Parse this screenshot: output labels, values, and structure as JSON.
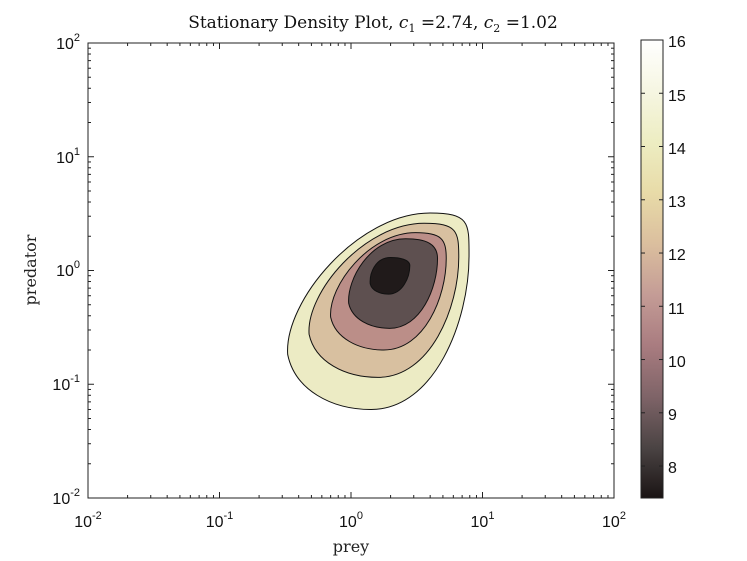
{
  "chart_data": {
    "type": "contour",
    "title_prefix": "Stationary Density Plot, ",
    "c1_sym": "c",
    "c1_sub": "1",
    "c1_eq": " =2.74, ",
    "c2_sym": "c",
    "c2_sub": "2",
    "c2_eq": " =1.02",
    "c1": 2.74,
    "c2": 1.02,
    "xlabel": "prey",
    "ylabel": "predator",
    "xscale": "log",
    "yscale": "log",
    "xlim": [
      0.01,
      100
    ],
    "ylim": [
      0.01,
      100
    ],
    "x_ticks": [
      {
        "base": "10",
        "exp": "-2"
      },
      {
        "base": "10",
        "exp": "-1"
      },
      {
        "base": "10",
        "exp": "0"
      },
      {
        "base": "10",
        "exp": "1"
      },
      {
        "base": "10",
        "exp": "2"
      }
    ],
    "y_ticks": [
      {
        "base": "10",
        "exp": "-2"
      },
      {
        "base": "10",
        "exp": "-1"
      },
      {
        "base": "10",
        "exp": "0"
      },
      {
        "base": "10",
        "exp": "1"
      },
      {
        "base": "10",
        "exp": "2"
      }
    ],
    "contour_levels": [
      {
        "level": 14,
        "color": "#ecebc4",
        "prey_min": 0.33,
        "prey_max": 7.9,
        "pred_min": 0.06,
        "pred_max": 3.2,
        "top_x": 4.0
      },
      {
        "level": 12,
        "color": "#d8c0a0",
        "prey_min": 0.48,
        "prey_max": 6.6,
        "pred_min": 0.115,
        "pred_max": 2.6,
        "top_x": 3.6
      },
      {
        "level": 10,
        "color": "#bb8e88",
        "prey_min": 0.7,
        "prey_max": 5.3,
        "pred_min": 0.2,
        "pred_max": 2.15,
        "top_x": 3.1
      },
      {
        "level": 8.5,
        "color": "#5e5050",
        "prey_min": 0.96,
        "prey_max": 4.55,
        "pred_min": 0.31,
        "pred_max": 1.9,
        "top_x": 2.6
      },
      {
        "level": 7.8,
        "color": "#201a1a",
        "prey_min": 1.4,
        "prey_max": 2.8,
        "pred_min": 0.62,
        "pred_max": 1.3,
        "top_x": 2.0
      }
    ],
    "colorbar": {
      "min": 7.4,
      "max": 16,
      "ticks": [
        "8",
        "9",
        "10",
        "11",
        "12",
        "13",
        "14",
        "15",
        "16"
      ],
      "colors": [
        "#1a1414",
        "#4b4444",
        "#7f6468",
        "#a97c80",
        "#c49c96",
        "#dbbf9e",
        "#e8dba8",
        "#ededc2",
        "#f6f6e2",
        "#ffffff"
      ]
    }
  }
}
